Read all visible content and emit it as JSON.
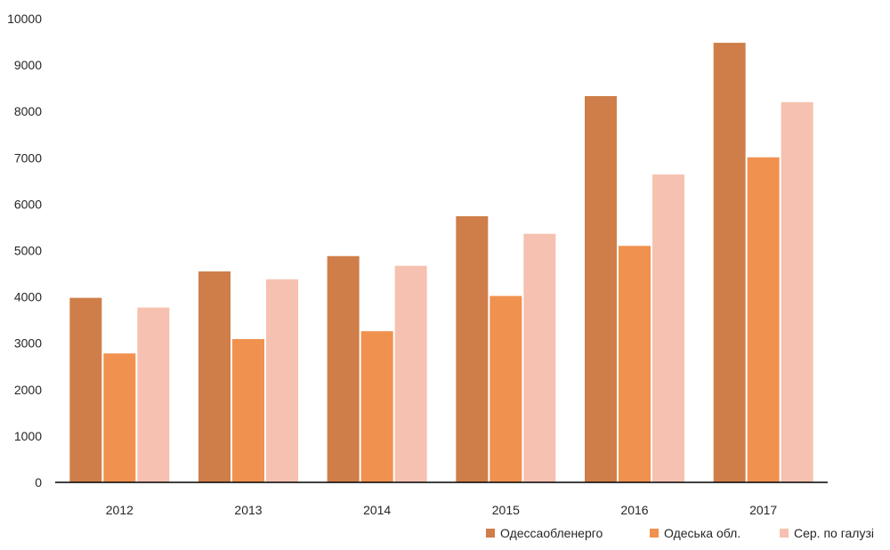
{
  "chart_data": {
    "type": "bar",
    "categories": [
      "2012",
      "2013",
      "2014",
      "2015",
      "2016",
      "2017"
    ],
    "series": [
      {
        "name": "Одессаобленерго",
        "color": "#cf7e49",
        "values": [
          3980,
          4550,
          4880,
          5740,
          8330,
          9480
        ]
      },
      {
        "name": "Одеська обл.",
        "color": "#f0914f",
        "values": [
          2780,
          3090,
          3260,
          4020,
          5100,
          7010
        ]
      },
      {
        "name": "Сер. по галузі",
        "color": "#f6c1b0",
        "values": [
          3770,
          4380,
          4670,
          5360,
          6640,
          8200
        ]
      }
    ],
    "ylim": [
      0,
      10000
    ],
    "yticks": [
      "0",
      "1000",
      "2000",
      "3000",
      "4000",
      "5000",
      "6000",
      "7000",
      "8000",
      "9000",
      "10000"
    ],
    "grid": false,
    "legend_position": "bottom-right"
  }
}
